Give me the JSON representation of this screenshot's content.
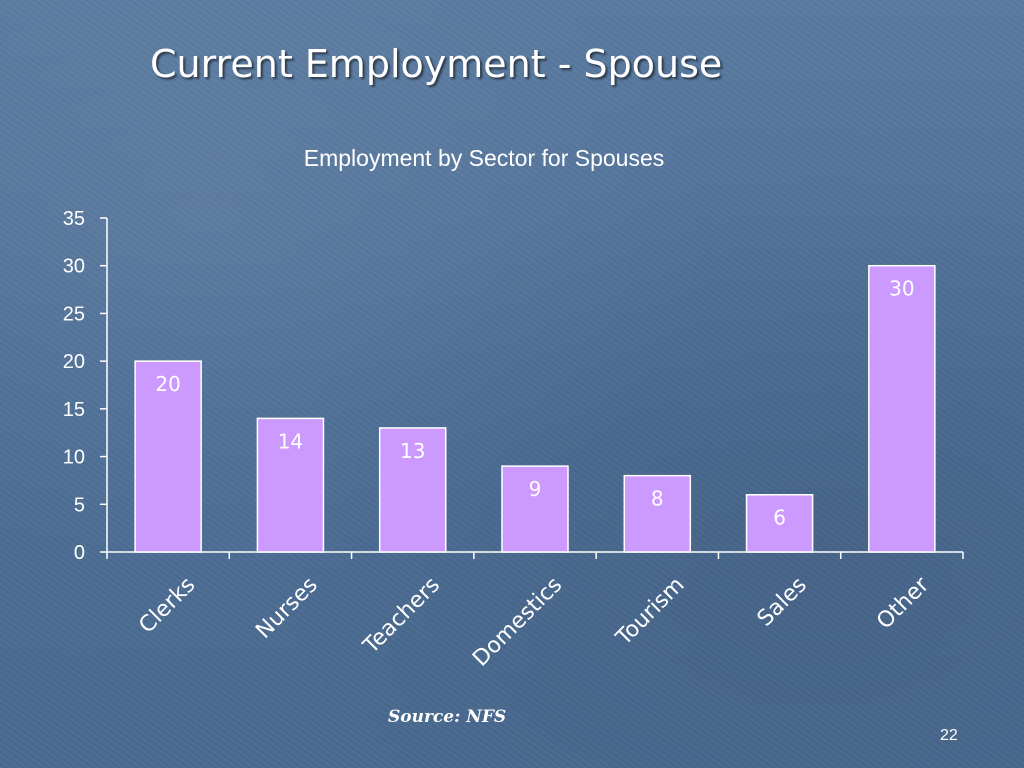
{
  "slide": {
    "title": "Current Employment - Spouse",
    "source": "Source: NFS",
    "page_number": "22"
  },
  "colors": {
    "bar_fill": "#cc99ff",
    "bar_stroke": "#ffffff",
    "text": "#ffffff",
    "background": "#4e6f97"
  },
  "chart_data": {
    "type": "bar",
    "title": "Employment by Sector for Spouses",
    "xlabel": "",
    "ylabel": "",
    "categories": [
      "Clerks",
      "Nurses",
      "Teachers",
      "Domestics",
      "Tourism",
      "Sales",
      "Other"
    ],
    "values": [
      20,
      14,
      13,
      9,
      8,
      6,
      30
    ],
    "ylim": [
      0,
      35
    ],
    "yticks": [
      0,
      5,
      10,
      15,
      20,
      25,
      30,
      35
    ],
    "grid": false,
    "legend": "none",
    "data_labels": true
  }
}
